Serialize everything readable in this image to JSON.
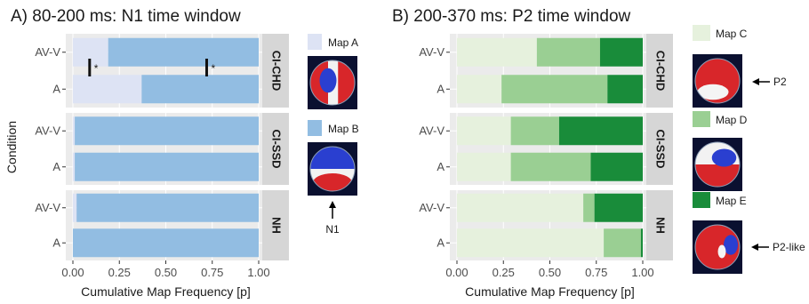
{
  "chart_data": [
    {
      "type": "bar",
      "orientation": "horizontal",
      "stacked": true,
      "title": "A) 80-200 ms: N1 time window",
      "xlabel": "Cumulative Map Frequency [p]",
      "ylabel": "Condition",
      "xlim": [
        0,
        1
      ],
      "x_ticks": [
        "0.00",
        "0.25",
        "0.50",
        "0.75",
        "1.00"
      ],
      "categories": [
        "AV-V",
        "A"
      ],
      "facets": [
        {
          "label": "CI-CHD",
          "series": [
            {
              "name": "Map A",
              "values": [
                0.19,
                0.37
              ]
            },
            {
              "name": "Map B",
              "values": [
                0.81,
                0.63
              ]
            }
          ]
        },
        {
          "label": "CI-SSD",
          "series": [
            {
              "name": "Map A",
              "values": [
                0.01,
                0.01
              ]
            },
            {
              "name": "Map B",
              "values": [
                0.99,
                0.99
              ]
            }
          ]
        },
        {
          "label": "NH",
          "series": [
            {
              "name": "Map A",
              "values": [
                0.02,
                0.0
              ]
            },
            {
              "name": "Map B",
              "values": [
                0.98,
                1.0
              ]
            }
          ]
        }
      ],
      "significance_marks": [
        {
          "facet": "CI-CHD",
          "x": 0.09,
          "label": "*"
        },
        {
          "facet": "CI-CHD",
          "x": 0.72,
          "label": "*"
        }
      ],
      "legend": [
        {
          "name": "Map A",
          "color": "#dde3f4"
        },
        {
          "name": "Map B",
          "color": "#92bde2"
        }
      ],
      "legend_annotation": "N1"
    },
    {
      "type": "bar",
      "orientation": "horizontal",
      "stacked": true,
      "title": "B) 200-370 ms: P2 time window",
      "xlabel": "Cumulative Map Frequency [p]",
      "ylabel": "",
      "xlim": [
        0,
        1
      ],
      "x_ticks": [
        "0.00",
        "0.25",
        "0.50",
        "0.75",
        "1.00"
      ],
      "categories": [
        "AV-V",
        "A"
      ],
      "facets": [
        {
          "label": "CI-CHD",
          "series": [
            {
              "name": "Map C",
              "values": [
                0.43,
                0.24
              ]
            },
            {
              "name": "Map D",
              "values": [
                0.34,
                0.57
              ]
            },
            {
              "name": "Map E",
              "values": [
                0.23,
                0.19
              ]
            }
          ]
        },
        {
          "label": "CI-SSD",
          "series": [
            {
              "name": "Map C",
              "values": [
                0.29,
                0.29
              ]
            },
            {
              "name": "Map D",
              "values": [
                0.26,
                0.43
              ]
            },
            {
              "name": "Map E",
              "values": [
                0.45,
                0.28
              ]
            }
          ]
        },
        {
          "label": "NH",
          "series": [
            {
              "name": "Map C",
              "values": [
                0.68,
                0.79
              ]
            },
            {
              "name": "Map D",
              "values": [
                0.06,
                0.2
              ]
            },
            {
              "name": "Map E",
              "values": [
                0.26,
                0.01
              ]
            }
          ]
        }
      ],
      "legend": [
        {
          "name": "Map C",
          "color": "#e6f1dd"
        },
        {
          "name": "Map D",
          "color": "#9acf93"
        },
        {
          "name": "Map E",
          "color": "#198c3a"
        }
      ],
      "legend_annotations": [
        "P2",
        "P2-like"
      ]
    }
  ],
  "colors": {
    "panel_bg": "#ebebeb",
    "strip_bg": "#d6d6d6",
    "grid": "#ffffff"
  }
}
